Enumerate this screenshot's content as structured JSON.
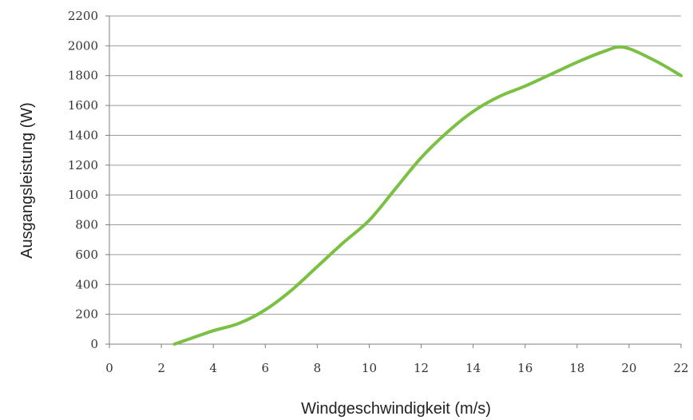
{
  "chart_data": {
    "type": "line",
    "title": "",
    "xlabel": "Windgeschwindigkeit (m/s)",
    "ylabel": "Ausgangsleistung (W)",
    "xlim": [
      0,
      22
    ],
    "ylim": [
      0,
      2200
    ],
    "x_ticks": [
      "0",
      "2",
      "4",
      "6",
      "8",
      "10",
      "12",
      "14",
      "16",
      "18",
      "20",
      "22"
    ],
    "y_ticks": [
      "0",
      "200",
      "400",
      "600",
      "800",
      "1000",
      "1200",
      "1400",
      "1600",
      "1800",
      "2000",
      "2200"
    ],
    "grid": "horizontal",
    "legend": "none",
    "series": [
      {
        "color": "#7ac143",
        "x": [
          2.5,
          3.0,
          4.0,
          5.0,
          6.0,
          7.0,
          8.0,
          9.0,
          10.0,
          11.0,
          12.0,
          13.0,
          14.0,
          15.0,
          16.0,
          17.0,
          18.0,
          19.0,
          19.8,
          21.0,
          22.0
        ],
        "y": [
          0,
          30,
          90,
          140,
          230,
          360,
          520,
          680,
          830,
          1040,
          1250,
          1420,
          1560,
          1660,
          1730,
          1810,
          1890,
          1960,
          1990,
          1900,
          1800
        ]
      }
    ]
  }
}
